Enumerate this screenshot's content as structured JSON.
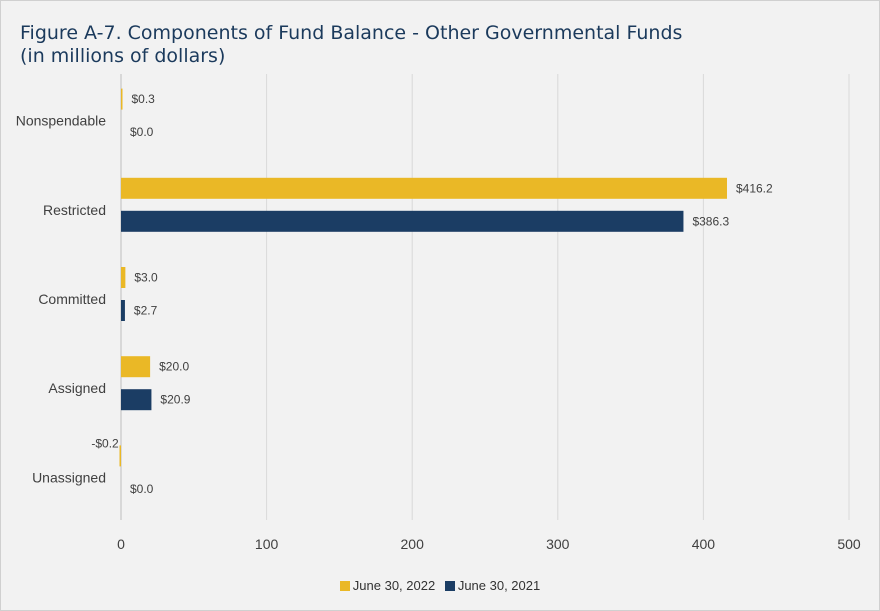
{
  "title_line1": "Figure A-7. Components of Fund Balance - Other Governmental Funds",
  "title_line2": "(in millions of dollars)",
  "chart_data": {
    "type": "bar",
    "orientation": "horizontal",
    "categories": [
      "Nonspendable",
      "Restricted",
      "Committed",
      "Assigned",
      "Unassigned"
    ],
    "series": [
      {
        "name": "June 30, 2022",
        "color": "#eab826",
        "values": [
          0.3,
          416.2,
          3.0,
          20.0,
          -0.2
        ],
        "labels": [
          "$0.3",
          "$416.2",
          "$3.0",
          "$20.0",
          "-$0.2"
        ]
      },
      {
        "name": "June 30, 2021",
        "color": "#1b3d64",
        "values": [
          0.0,
          386.3,
          2.7,
          20.9,
          0.0
        ],
        "labels": [
          "$0.0",
          "$386.3",
          "$2.7",
          "$20.9",
          "$0.0"
        ]
      }
    ],
    "xlim": [
      0,
      500
    ],
    "xticks": [
      0,
      100,
      200,
      300,
      400,
      500
    ],
    "grid": true,
    "legend_position": "bottom"
  }
}
